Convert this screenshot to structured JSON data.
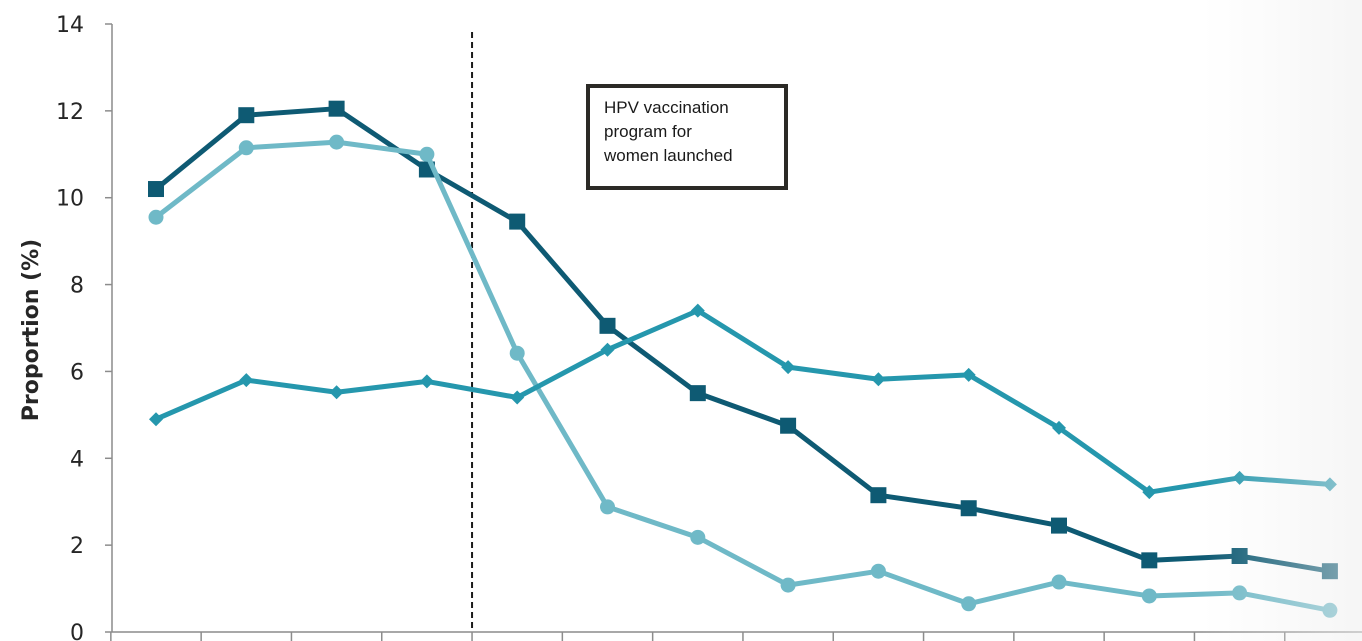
{
  "chart_data": {
    "type": "line",
    "ylabel": "Proportion (%)",
    "ylim": [
      0,
      14
    ],
    "yticks": [
      0,
      2,
      4,
      6,
      8,
      10,
      12,
      14
    ],
    "x": [
      1,
      2,
      3,
      4,
      5,
      6,
      7,
      8,
      9,
      10,
      11,
      12,
      13,
      14
    ],
    "vline_x": 4.5,
    "annotation": "HPV vaccination\nprogram for\nwomen launched",
    "grid": false,
    "legend": "none",
    "series": [
      {
        "marker": "square",
        "color": "#0e5a73",
        "values": [
          10.2,
          11.9,
          12.05,
          10.65,
          9.45,
          7.05,
          5.5,
          4.75,
          3.15,
          2.85,
          2.45,
          1.65,
          1.75,
          1.4
        ]
      },
      {
        "marker": "circle",
        "color": "#6fb9c7",
        "values": [
          9.55,
          11.15,
          11.28,
          11.0,
          6.42,
          2.88,
          2.18,
          1.08,
          1.4,
          0.65,
          1.15,
          0.83,
          0.9,
          0.5
        ]
      },
      {
        "marker": "diamond",
        "color": "#2597ad",
        "values": [
          4.9,
          5.8,
          5.52,
          5.77,
          5.4,
          6.5,
          7.4,
          6.1,
          5.82,
          5.92,
          4.7,
          3.22,
          3.55,
          3.4
        ]
      }
    ]
  }
}
